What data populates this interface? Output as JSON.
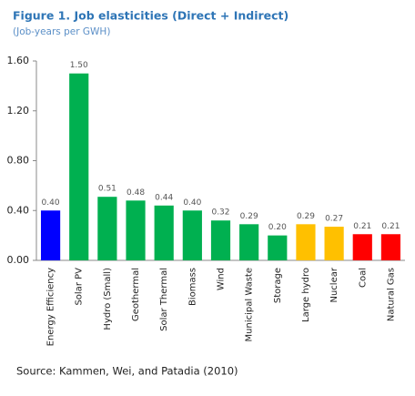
{
  "chart_data": {
    "type": "bar",
    "title": "Figure 1. Job elasticities (Direct + Indirect)",
    "subtitle": "(Job-years per GWH)",
    "source": "Source: Kammen, Wei, and Patadia (2010)",
    "categories": [
      "Energy Efficiency",
      "Solar PV",
      "Hydro (Small)",
      "Geothermal",
      "Solar Thermal",
      "Biomass",
      "Wind",
      "Municipal Waste",
      "Storage",
      "Large hydro",
      "Nuclear",
      "Coal",
      "Natural Gas"
    ],
    "values": [
      0.4,
      1.5,
      0.51,
      0.48,
      0.44,
      0.4,
      0.32,
      0.29,
      0.2,
      0.29,
      0.27,
      0.21,
      0.21
    ],
    "value_labels": [
      "0.40",
      "1.50",
      "0.51",
      "0.48",
      "0.44",
      "0.40",
      "0.32",
      "0.29",
      "0.20",
      "0.29",
      "0.27",
      "0.21",
      "0.21"
    ],
    "colors": [
      "#0000ff",
      "#00b050",
      "#00b050",
      "#00b050",
      "#00b050",
      "#00b050",
      "#00b050",
      "#00b050",
      "#00b050",
      "#ffc000",
      "#ffc000",
      "#ff0000",
      "#ff0000"
    ],
    "ylim": [
      0,
      1.6
    ],
    "yticks": [
      {
        "value": 0,
        "label": "0.00"
      },
      {
        "value": 0.4,
        "label": "0.40"
      },
      {
        "value": 0.8,
        "label": "0.80"
      },
      {
        "value": 1.2,
        "label": "1.20"
      },
      {
        "value": 1.6,
        "label": "1.60"
      }
    ],
    "grid": false
  }
}
